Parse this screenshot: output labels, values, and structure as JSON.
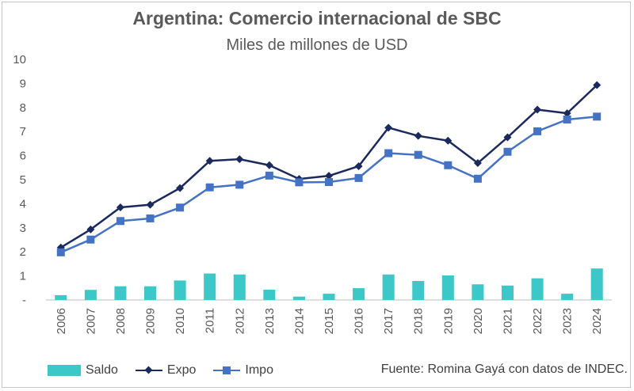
{
  "chart_data": {
    "type": "bar+line",
    "title": "Argentina: Comercio internacional de SBC",
    "subtitle": "Miles de millones de USD",
    "categories": [
      "2006",
      "2007",
      "2008",
      "2009",
      "2010",
      "2011",
      "2012",
      "2013",
      "2014",
      "2015",
      "2016",
      "2017",
      "2018",
      "2019",
      "2020",
      "2021",
      "2022",
      "2023",
      "2024"
    ],
    "ylim": [
      0,
      10
    ],
    "yticks": [
      "-",
      "1",
      "2",
      "3",
      "4",
      "5",
      "6",
      "7",
      "8",
      "9",
      "10"
    ],
    "grid": false,
    "legend_position": "bottom-left",
    "series": [
      {
        "name": "Saldo",
        "kind": "bar",
        "color": "#3cc8c8",
        "values": [
          0.2,
          0.42,
          0.57,
          0.57,
          0.81,
          1.1,
          1.06,
          0.43,
          0.14,
          0.26,
          0.49,
          1.06,
          0.79,
          1.02,
          0.65,
          0.6,
          0.9,
          0.26,
          1.31
        ]
      },
      {
        "name": "Expo",
        "kind": "line",
        "marker": "diamond",
        "color": "#1a2a5e",
        "values": [
          2.18,
          2.93,
          3.85,
          3.96,
          4.65,
          5.78,
          5.85,
          5.6,
          5.03,
          5.16,
          5.56,
          7.16,
          6.82,
          6.62,
          5.69,
          6.76,
          7.91,
          7.76,
          8.93
        ]
      },
      {
        "name": "Impo",
        "kind": "line",
        "marker": "square",
        "color": "#4472c4",
        "values": [
          1.98,
          2.51,
          3.28,
          3.39,
          3.84,
          4.68,
          4.79,
          5.17,
          4.89,
          4.9,
          5.07,
          6.1,
          6.03,
          5.6,
          5.04,
          6.16,
          7.01,
          7.5,
          7.62
        ]
      }
    ],
    "source": "Fuente: Romina Gayá con datos de INDEC."
  }
}
